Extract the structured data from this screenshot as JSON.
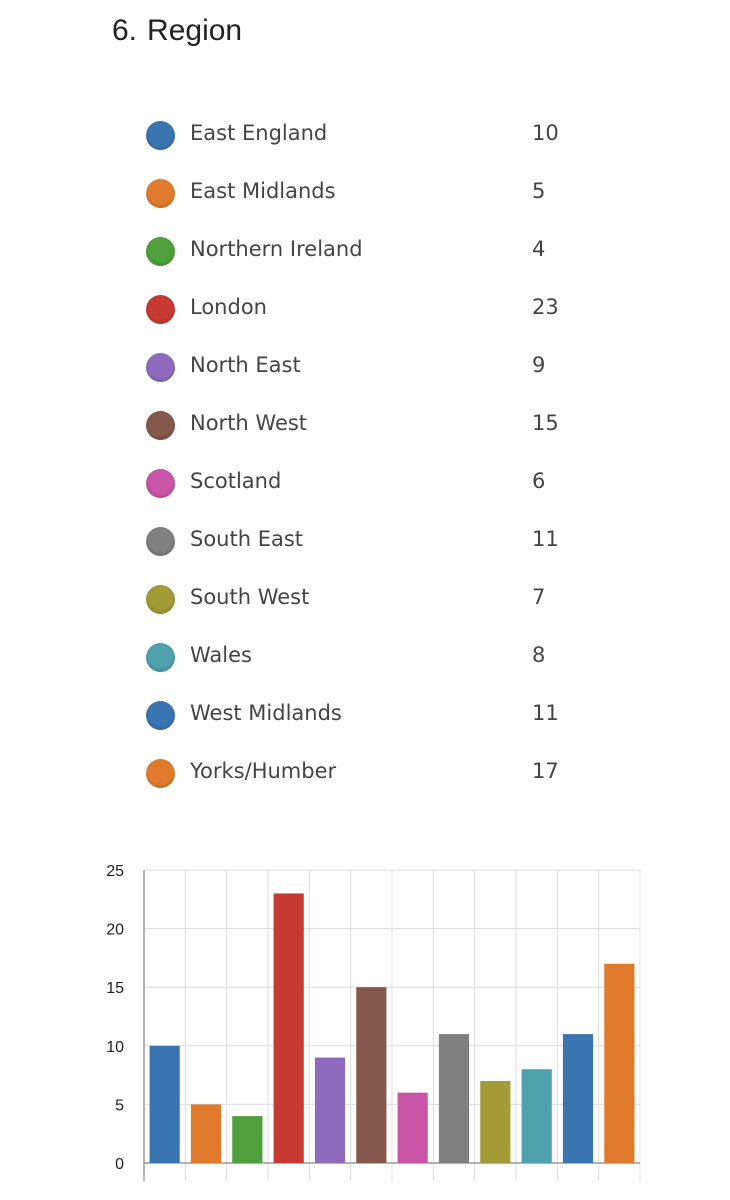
{
  "question": {
    "number": "6.",
    "title": "Region"
  },
  "colors": {
    "blue": "#3b75b1",
    "orange": "#e07b2e",
    "green": "#4f9f3c",
    "red": "#c73a32",
    "purple": "#8f6bbd",
    "brown": "#85584c",
    "pink": "#c955a8",
    "gray": "#808080",
    "olive": "#a39a38",
    "teal": "#4fa1ad"
  },
  "legend": [
    {
      "label": "East England",
      "count": "10",
      "color": "#3b75b1"
    },
    {
      "label": "East Midlands",
      "count": "5",
      "color": "#e07b2e"
    },
    {
      "label": "Northern Ireland",
      "count": "4",
      "color": "#4f9f3c"
    },
    {
      "label": "London",
      "count": "23",
      "color": "#c73a32"
    },
    {
      "label": "North East",
      "count": "9",
      "color": "#8f6bbd"
    },
    {
      "label": "North West",
      "count": "15",
      "color": "#85584c"
    },
    {
      "label": "Scotland",
      "count": "6",
      "color": "#c955a8"
    },
    {
      "label": "South East",
      "count": "11",
      "color": "#808080"
    },
    {
      "label": "South West",
      "count": "7",
      "color": "#a39a38"
    },
    {
      "label": "Wales",
      "count": "8",
      "color": "#4fa1ad"
    },
    {
      "label": "West Midlands",
      "count": "11",
      "color": "#3b75b1"
    },
    {
      "label": "Yorks/Humber",
      "count": "17",
      "color": "#e07b2e"
    }
  ],
  "chart_data": {
    "type": "bar",
    "categories": [
      "East England",
      "East Midlands",
      "Northern Ireland",
      "London",
      "North East",
      "North West",
      "Scotland",
      "South East",
      "South West",
      "Wales",
      "West Midlands",
      "Yorks/Humber"
    ],
    "values": [
      10,
      5,
      4,
      23,
      9,
      15,
      6,
      11,
      7,
      8,
      11,
      17
    ],
    "colors": [
      "#3b75b1",
      "#e07b2e",
      "#4f9f3c",
      "#c73a32",
      "#8f6bbd",
      "#85584c",
      "#c955a8",
      "#808080",
      "#a39a38",
      "#4fa1ad",
      "#3b75b1",
      "#e07b2e"
    ],
    "ylim": [
      0,
      25
    ],
    "yticks": [
      "0",
      "5",
      "10",
      "15",
      "20",
      "25"
    ],
    "grid": true,
    "legend_placement": "top"
  }
}
